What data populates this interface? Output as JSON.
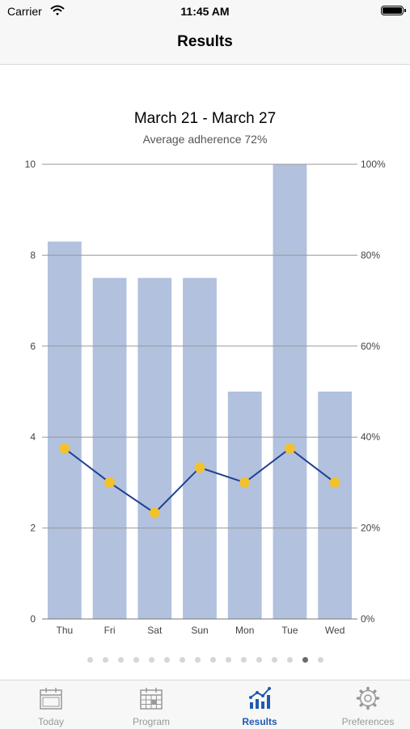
{
  "status_bar": {
    "carrier": "Carrier",
    "time": "11:45 AM"
  },
  "nav": {
    "title": "Results"
  },
  "chart_title": "March 21 - March 27",
  "chart_subtitle": "Average adherence 72%",
  "chart_data": {
    "type": "bar",
    "title": "March 21 - March 27",
    "subtitle": "Average adherence 72%",
    "categories": [
      "Thu",
      "Fri",
      "Sat",
      "Sun",
      "Mon",
      "Tue",
      "Wed"
    ],
    "bar_values": [
      8.3,
      7.5,
      7.5,
      7.5,
      5,
      10,
      5
    ],
    "line_values": [
      3.75,
      3,
      2.33,
      3.33,
      3,
      3.75,
      3
    ],
    "left_axis": {
      "range": [
        0,
        10
      ],
      "ticks": [
        "0",
        "2",
        "4",
        "6",
        "8",
        "10"
      ]
    },
    "right_axis": {
      "range": [
        0,
        100
      ],
      "ticks": [
        "0%",
        "20%",
        "40%",
        "60%",
        "80%",
        "100%"
      ]
    },
    "bar_color": "#b1c1de",
    "line_color": "#1f3f8f",
    "point_color": "#f2c12e",
    "grid": true
  },
  "pager": {
    "count": 16,
    "active_index": 14
  },
  "tabs": [
    {
      "label": "Today",
      "icon": "calendar-today-icon"
    },
    {
      "label": "Program",
      "icon": "calendar-grid-icon"
    },
    {
      "label": "Results",
      "icon": "bar-chart-icon",
      "active": true
    },
    {
      "label": "Preferences",
      "icon": "gear-icon"
    }
  ],
  "colors": {
    "accent": "#1f5ab0",
    "inactive": "#999999"
  }
}
